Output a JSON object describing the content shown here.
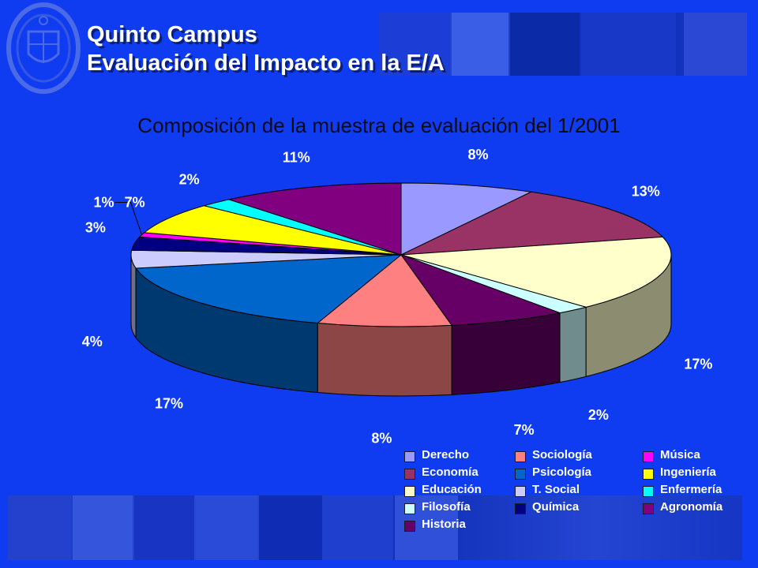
{
  "header": {
    "line1": "Quinto Campus",
    "line2": "Evaluación del Impacto en la E/A"
  },
  "chart_data": {
    "type": "pie",
    "title": "Composición de la muestra de evaluación del 1/2001",
    "legend_position": "bottom-right",
    "slices": [
      {
        "name": "Derecho",
        "value": 8,
        "label": "8%",
        "color": "#9999ff"
      },
      {
        "name": "Economía",
        "value": 13,
        "label": "13%",
        "color": "#993366"
      },
      {
        "name": "Educación",
        "value": 17,
        "label": "17%",
        "color": "#ffffcc"
      },
      {
        "name": "Filosofía",
        "value": 2,
        "label": "2%",
        "color": "#ccffff"
      },
      {
        "name": "Historia",
        "value": 7,
        "label": "7%",
        "color": "#660066"
      },
      {
        "name": "Sociología",
        "value": 8,
        "label": "8%",
        "color": "#ff8080"
      },
      {
        "name": "Psicología",
        "value": 17,
        "label": "17%",
        "color": "#0066cc"
      },
      {
        "name": "T. Social",
        "value": 4,
        "label": "4%",
        "color": "#ccccff"
      },
      {
        "name": "Química",
        "value": 3,
        "label": "3%",
        "color": "#000080"
      },
      {
        "name": "Música",
        "value": 1,
        "label": "1%",
        "color": "#ff00ff"
      },
      {
        "name": "Ingeniería",
        "value": 7,
        "label": "7%",
        "color": "#ffff00"
      },
      {
        "name": "Enfermería",
        "value": 2,
        "label": "2%",
        "color": "#00ffff"
      },
      {
        "name": "Agronomía",
        "value": 11,
        "label": "11%",
        "color": "#800080"
      }
    ]
  }
}
